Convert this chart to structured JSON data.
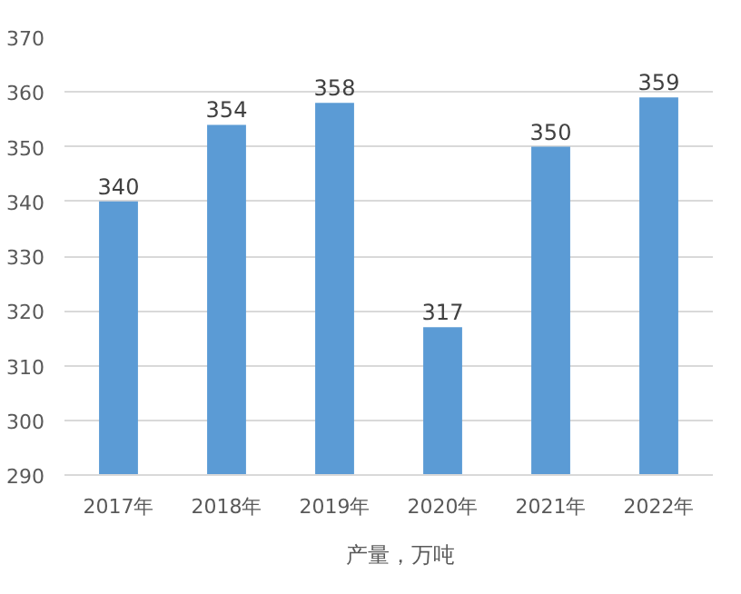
{
  "chart_data": {
    "type": "bar",
    "categories": [
      "2017年",
      "2018年",
      "2019年",
      "2020年",
      "2021年",
      "2022年"
    ],
    "series": [
      {
        "name": "产量，万吨",
        "color": "#5b9bd5",
        "values": [
          340,
          354,
          358,
          317,
          350,
          359
        ]
      }
    ],
    "ylim": [
      290,
      370
    ],
    "yticks": [
      290,
      300,
      310,
      320,
      330,
      340,
      350,
      360,
      370
    ],
    "grid": "y",
    "legend": "bottom",
    "data_labels": true
  }
}
